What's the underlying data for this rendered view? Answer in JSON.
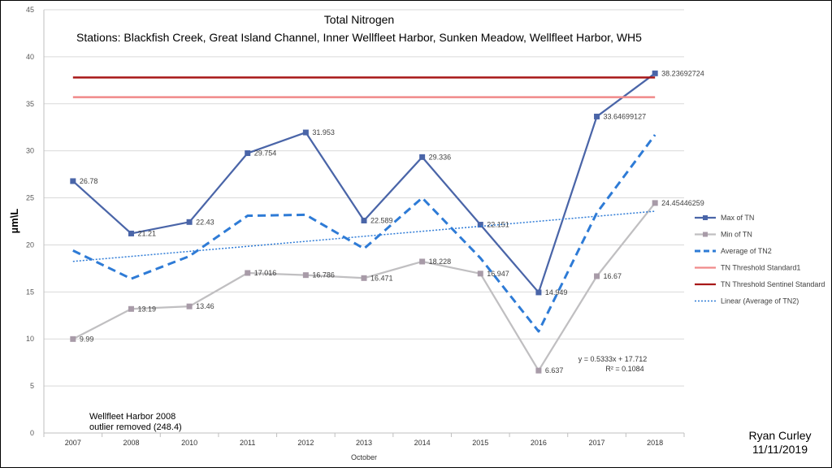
{
  "chart_data": {
    "type": "line",
    "title": "Total Nitrogen",
    "subtitle": "Stations: Blackfish Creek, Great Island Channel, Inner Wellfleet Harbor, Sunken Meadow, Wellfleet Harbor, WH5",
    "ylabel": "µm\\L",
    "xlabel": "October",
    "categories": [
      "2007",
      "2008",
      "2010",
      "2011",
      "2012",
      "2013",
      "2014",
      "2015",
      "2016",
      "2017",
      "2018"
    ],
    "ylim": [
      0,
      45
    ],
    "yticks": [
      0,
      5,
      10,
      15,
      20,
      25,
      30,
      35,
      40,
      45
    ],
    "grid": true,
    "legend_position": "right",
    "series": [
      {
        "name": "Max of TN",
        "color": "#4a65a8",
        "style": "solid-markers",
        "values": [
          26.78,
          21.21,
          22.43,
          29.754,
          31.953,
          22.589,
          29.336,
          22.151,
          14.949,
          33.64699127,
          38.23692724
        ],
        "labels": [
          "26.78",
          "21.21",
          "22.43",
          "29.754",
          "31.953",
          "22.589",
          "29.336",
          "22.151",
          "14.949",
          "33.64699127",
          "38.23692724"
        ]
      },
      {
        "name": "Min of TN",
        "color": "#c0bfc1",
        "marker_color": "#a89ba8",
        "style": "solid-markers",
        "values": [
          9.99,
          13.19,
          13.46,
          17.016,
          16.786,
          16.471,
          18.228,
          16.947,
          6.637,
          16.67,
          24.45446259
        ],
        "labels": [
          "9.99",
          "13.19",
          "13.46",
          "17.016",
          "16.786",
          "16.471",
          "18.228",
          "16.947",
          "6.637",
          "16.67",
          "24.45446259"
        ]
      },
      {
        "name": "Average of TN2",
        "color": "#2e7bd6",
        "style": "dashed",
        "values": [
          19.4,
          16.4,
          18.8,
          23.1,
          23.2,
          19.6,
          25.0,
          18.6,
          10.8,
          23.4,
          31.7
        ]
      },
      {
        "name": "TN Threshold Standard1",
        "color": "#f08a8a",
        "style": "solid",
        "values": [
          35.7,
          35.7,
          35.7,
          35.7,
          35.7,
          35.7,
          35.7,
          35.7,
          35.7,
          35.7,
          35.7
        ]
      },
      {
        "name": "TN Threshold Sentinel Standard",
        "color": "#a81818",
        "style": "solid",
        "values": [
          37.8,
          37.8,
          37.8,
          37.8,
          37.8,
          37.8,
          37.8,
          37.8,
          37.8,
          37.8,
          37.8
        ]
      },
      {
        "name": "Linear (Average of TN2)",
        "color": "#2e7bd6",
        "style": "dotted",
        "trend": {
          "slope": 0.5333,
          "intercept": 17.712
        }
      }
    ],
    "annotations": {
      "equation": "y = 0.5333x + 17.712",
      "r2": "R² = 0.1084",
      "note_line1": "Wellfleet Harbor 2008",
      "note_line2": "outlier removed (248.4)"
    }
  },
  "signature": {
    "name": "Ryan Curley",
    "date": "11/11/2019"
  }
}
